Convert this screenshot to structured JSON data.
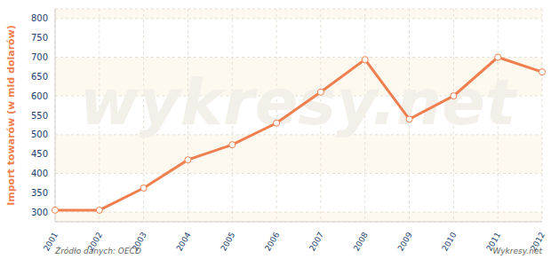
{
  "chart_data": {
    "type": "line",
    "y_label": "Import towarów (w mld dolarów)",
    "source": "Źródło danych: OECD",
    "credit": "Wykresy.net",
    "watermark": "wykresy.net",
    "categories": [
      "2001",
      "2002",
      "2003",
      "2004",
      "2005",
      "2006",
      "2007",
      "2008",
      "2009",
      "2010",
      "2011",
      "2012"
    ],
    "values": [
      305,
      305,
      362,
      435,
      474,
      530,
      610,
      694,
      540,
      600,
      700,
      662
    ],
    "color": "#f07f4f",
    "marker": "circle",
    "ylim": [
      275,
      825
    ],
    "yticks": [
      300,
      350,
      400,
      450,
      500,
      550,
      600,
      650,
      700,
      750,
      800
    ],
    "grid": true
  }
}
